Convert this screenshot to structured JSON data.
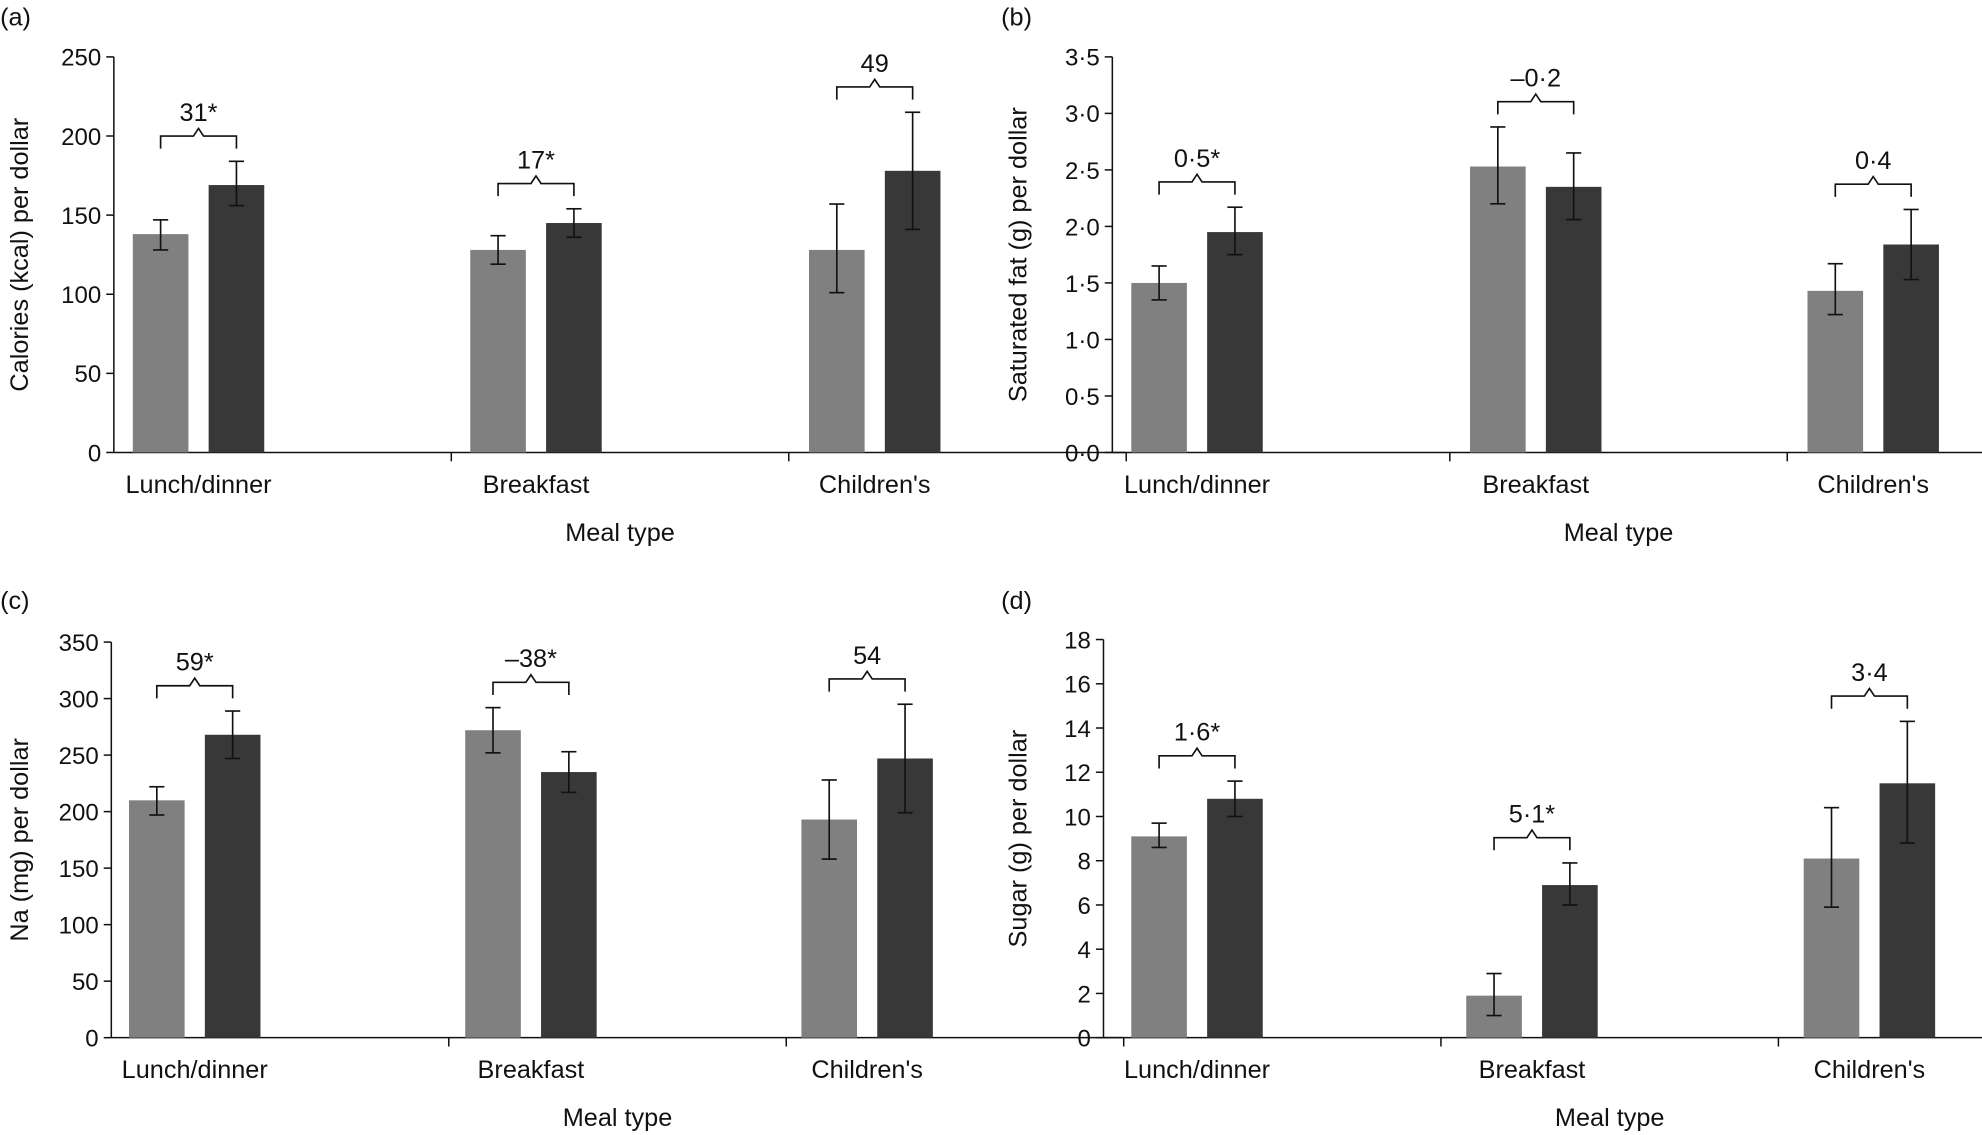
{
  "colors": {
    "group1": "#808080",
    "group2": "#383838",
    "axis": "#111111"
  },
  "chart_data": [
    {
      "panel_label": "(a)",
      "type": "bar",
      "ylabel": "Calories (kcal) per dollar",
      "xlabel": "Meal type",
      "ylim": [
        0,
        250
      ],
      "yticks": [
        "0",
        "50",
        "100",
        "150",
        "200",
        "250"
      ],
      "ytick_values": [
        0,
        50,
        100,
        150,
        200,
        250
      ],
      "categories": [
        "Lunch/dinner",
        "Breakfast",
        "Children's"
      ],
      "series": [
        {
          "values": [
            138,
            128,
            128
          ],
          "err_low": [
            128,
            119,
            101
          ],
          "err_high": [
            147,
            137,
            157
          ]
        },
        {
          "values": [
            169,
            145,
            178
          ],
          "err_low": [
            156,
            136,
            141
          ],
          "err_high": [
            184,
            154,
            215
          ]
        }
      ],
      "annotations": [
        "31*",
        "17*",
        "49"
      ]
    },
    {
      "panel_label": "(b)",
      "type": "bar",
      "ylabel": "Saturated fat (g) per dollar",
      "xlabel": "Meal type",
      "ylim": [
        0,
        3.5
      ],
      "yticks": [
        "0·0",
        "0·5",
        "1·0",
        "1·5",
        "2·0",
        "2·5",
        "3·0",
        "3·5"
      ],
      "ytick_values": [
        0,
        0.5,
        1,
        1.5,
        2,
        2.5,
        3,
        3.5
      ],
      "categories": [
        "Lunch/dinner",
        "Breakfast",
        "Children's"
      ],
      "series": [
        {
          "values": [
            1.5,
            2.53,
            1.43
          ],
          "err_low": [
            1.35,
            2.2,
            1.22
          ],
          "err_high": [
            1.65,
            2.88,
            1.67
          ]
        },
        {
          "values": [
            1.95,
            2.35,
            1.84
          ],
          "err_low": [
            1.75,
            2.06,
            1.53
          ],
          "err_high": [
            2.17,
            2.65,
            2.15
          ]
        }
      ],
      "annotations": [
        "0·5*",
        "–0·2",
        "0·4"
      ]
    },
    {
      "panel_label": "(c)",
      "type": "bar",
      "ylabel": "Na (mg) per dollar",
      "xlabel": "Meal type",
      "ylim": [
        0,
        350
      ],
      "yticks": [
        "0",
        "50",
        "100",
        "150",
        "200",
        "250",
        "300",
        "350"
      ],
      "ytick_values": [
        0,
        50,
        100,
        150,
        200,
        250,
        300,
        350
      ],
      "categories": [
        "Lunch/dinner",
        "Breakfast",
        "Children's"
      ],
      "series": [
        {
          "values": [
            210,
            272,
            193
          ],
          "err_low": [
            197,
            252,
            158
          ],
          "err_high": [
            222,
            292,
            228
          ]
        },
        {
          "values": [
            268,
            235,
            247
          ],
          "err_low": [
            247,
            217,
            199
          ],
          "err_high": [
            289,
            253,
            295
          ]
        }
      ],
      "annotations": [
        "59*",
        "–38*",
        "54"
      ]
    },
    {
      "panel_label": "(d)",
      "type": "bar",
      "ylabel": "Sugar (g) per dollar",
      "xlabel": "Meal type",
      "ylim": [
        0,
        18
      ],
      "yticks": [
        "0",
        "2",
        "4",
        "6",
        "8",
        "10",
        "12",
        "14",
        "16",
        "18"
      ],
      "ytick_values": [
        0,
        2,
        4,
        6,
        8,
        10,
        12,
        14,
        16,
        18
      ],
      "categories": [
        "Lunch/dinner",
        "Breakfast",
        "Children's"
      ],
      "series": [
        {
          "values": [
            9.1,
            1.9,
            8.1
          ],
          "err_low": [
            8.6,
            1.0,
            5.9
          ],
          "err_high": [
            9.7,
            2.9,
            10.4
          ]
        },
        {
          "values": [
            10.8,
            6.9,
            11.5
          ],
          "err_low": [
            10.0,
            6.0,
            8.8
          ],
          "err_high": [
            11.6,
            7.9,
            14.3
          ]
        }
      ],
      "annotations": [
        "1·6*",
        "5·1*",
        "3·4"
      ]
    }
  ]
}
